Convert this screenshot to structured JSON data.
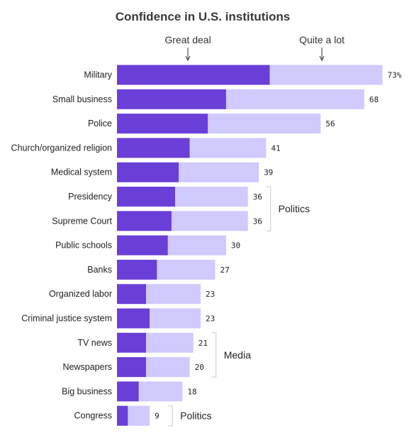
{
  "chart_data": {
    "type": "bar",
    "orientation": "horizontal",
    "stacked": true,
    "title": "Confidence in U.S. institutions",
    "categories": [
      "Military",
      "Small business",
      "Police",
      "Church/organized religion",
      "Medical system",
      "Presidency",
      "Supreme Court",
      "Public schools",
      "Banks",
      "Organized labor",
      "Criminal justice system",
      "TV news",
      "Newspapers",
      "Big business",
      "Congress"
    ],
    "series": [
      {
        "name": "Great deal",
        "values": [
          42,
          30,
          25,
          20,
          17,
          16,
          15,
          14,
          11,
          8,
          9,
          8,
          8,
          6,
          3
        ]
      },
      {
        "name": "Quite a lot",
        "values": [
          31,
          38,
          31,
          21,
          22,
          20,
          21,
          16,
          16,
          15,
          14,
          13,
          12,
          12,
          6
        ]
      }
    ],
    "totals": [
      "73%",
      "68",
      "56",
      "41",
      "39",
      "36",
      "36",
      "30",
      "27",
      "23",
      "23",
      "21",
      "20",
      "18",
      "9"
    ],
    "groups": [
      {
        "label": "Politics",
        "members": [
          "Presidency",
          "Supreme Court"
        ]
      },
      {
        "label": "Media",
        "members": [
          "TV news",
          "Newspapers"
        ]
      },
      {
        "label": "Politics",
        "members": [
          "Congress"
        ]
      }
    ],
    "xlim": [
      0,
      75
    ],
    "grid": false,
    "legend": "top",
    "colors": {
      "great_deal": "#6a3fd8",
      "quite_a_lot": "#d0cafd"
    }
  }
}
